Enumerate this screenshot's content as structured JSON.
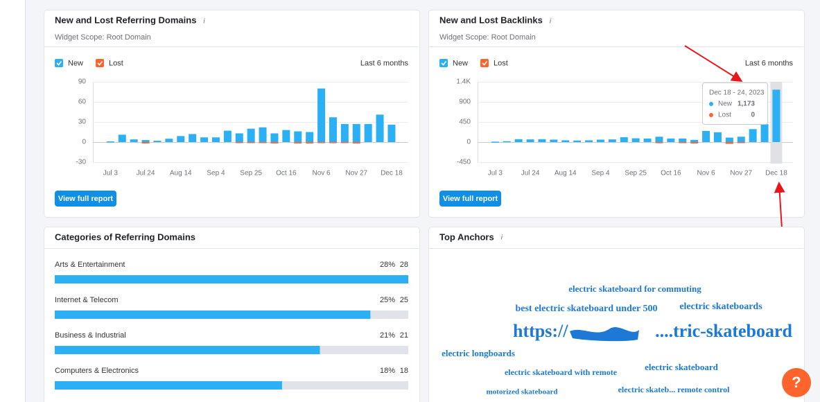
{
  "referring_domains": {
    "title": "New and Lost Referring Domains",
    "scope": "Widget Scope: Root Domain",
    "period": "Last 6 months",
    "button": "View full report",
    "chart_data": {
      "type": "bar",
      "categories": [
        null,
        "Jul 3",
        null,
        null,
        "Jul 24",
        null,
        null,
        "Aug 14",
        null,
        null,
        "Sep 4",
        null,
        null,
        "Sep 25",
        null,
        null,
        "Oct 16",
        null,
        null,
        "Nov 6",
        null,
        null,
        "Nov 27",
        null,
        null,
        "Dec 18"
      ],
      "series": [
        {
          "name": "New",
          "color": "#2bb0f5",
          "values": [
            0,
            1,
            11,
            4,
            3,
            2,
            5,
            9,
            12,
            7,
            7,
            17,
            13,
            20,
            22,
            13,
            18,
            16,
            15,
            80,
            37,
            27,
            27,
            27,
            41,
            26
          ]
        },
        {
          "name": "Lost",
          "color": "#ff642d",
          "values": [
            0,
            0,
            0,
            0,
            -2,
            0,
            0,
            0,
            0,
            0,
            0,
            0,
            -1,
            -1,
            -1,
            -2,
            0,
            -2,
            -2,
            -1,
            -1,
            -1,
            -2,
            0,
            0,
            0
          ]
        }
      ],
      "ylim": [
        -30,
        90
      ],
      "yticks": [
        -30,
        0,
        30,
        60,
        90
      ],
      "grid": true
    }
  },
  "backlinks": {
    "title": "New and Lost Backlinks",
    "scope": "Widget Scope: Root Domain",
    "period": "Last 6 months",
    "button": "View full report",
    "chart_data": {
      "type": "bar",
      "categories": [
        null,
        "Jul 3",
        null,
        null,
        "Jul 24",
        null,
        null,
        "Aug 14",
        null,
        null,
        "Sep 4",
        null,
        null,
        "Sep 25",
        null,
        null,
        "Oct 16",
        null,
        null,
        "Nov 6",
        null,
        null,
        "Nov 27",
        null,
        null,
        "Dec 18"
      ],
      "series": [
        {
          "name": "New",
          "color": "#2bb0f5",
          "values": [
            0,
            10,
            20,
            65,
            60,
            65,
            55,
            40,
            35,
            40,
            55,
            60,
            110,
            85,
            80,
            120,
            80,
            80,
            50,
            250,
            220,
            100,
            120,
            290,
            400,
            1173
          ]
        },
        {
          "name": "Lost",
          "color": "#ff642d",
          "values": [
            0,
            0,
            0,
            0,
            0,
            0,
            0,
            0,
            0,
            0,
            0,
            0,
            0,
            0,
            0,
            -25,
            0,
            -20,
            -30,
            0,
            0,
            -40,
            -20,
            0,
            0,
            0
          ]
        }
      ],
      "ylim": [
        -450,
        1350
      ],
      "yticks": [
        -450,
        0,
        450,
        900,
        {
          "value": 1350,
          "label": "1.4K"
        }
      ],
      "grid": true,
      "tooltip": {
        "title": "Dec 18 - 24, 2023",
        "new": {
          "value": 1173,
          "label": "1,173"
        },
        "lost": 0
      }
    }
  },
  "categories": {
    "title": "Categories of Referring Domains",
    "rows": [
      {
        "name": "Arts & Entertainment",
        "share": {
          "value": 28,
          "label": "28%"
        },
        "domains": 28
      },
      {
        "name": "Internet & Telecom",
        "share": {
          "value": 25,
          "label": "25%"
        },
        "domains": 25
      },
      {
        "name": "Business & Industrial",
        "share": {
          "value": 21,
          "label": "21%"
        },
        "domains": 21
      },
      {
        "name": "Computers & Electronics",
        "share": {
          "value": 18,
          "label": "18%"
        },
        "domains": 18
      }
    ]
  },
  "top_anchors": {
    "title": "Top Anchors",
    "words": [
      "electric skateboard for commuting",
      "best electric skateboard under 500",
      "electric skateboards",
      "electric longboards",
      "electric skateboard with remote",
      "electric skateboard",
      "motorized skateboard",
      "electric skateb... remote control"
    ],
    "url_start": "https://",
    "url_end": "....tric-skateboard"
  },
  "help_button": "?"
}
